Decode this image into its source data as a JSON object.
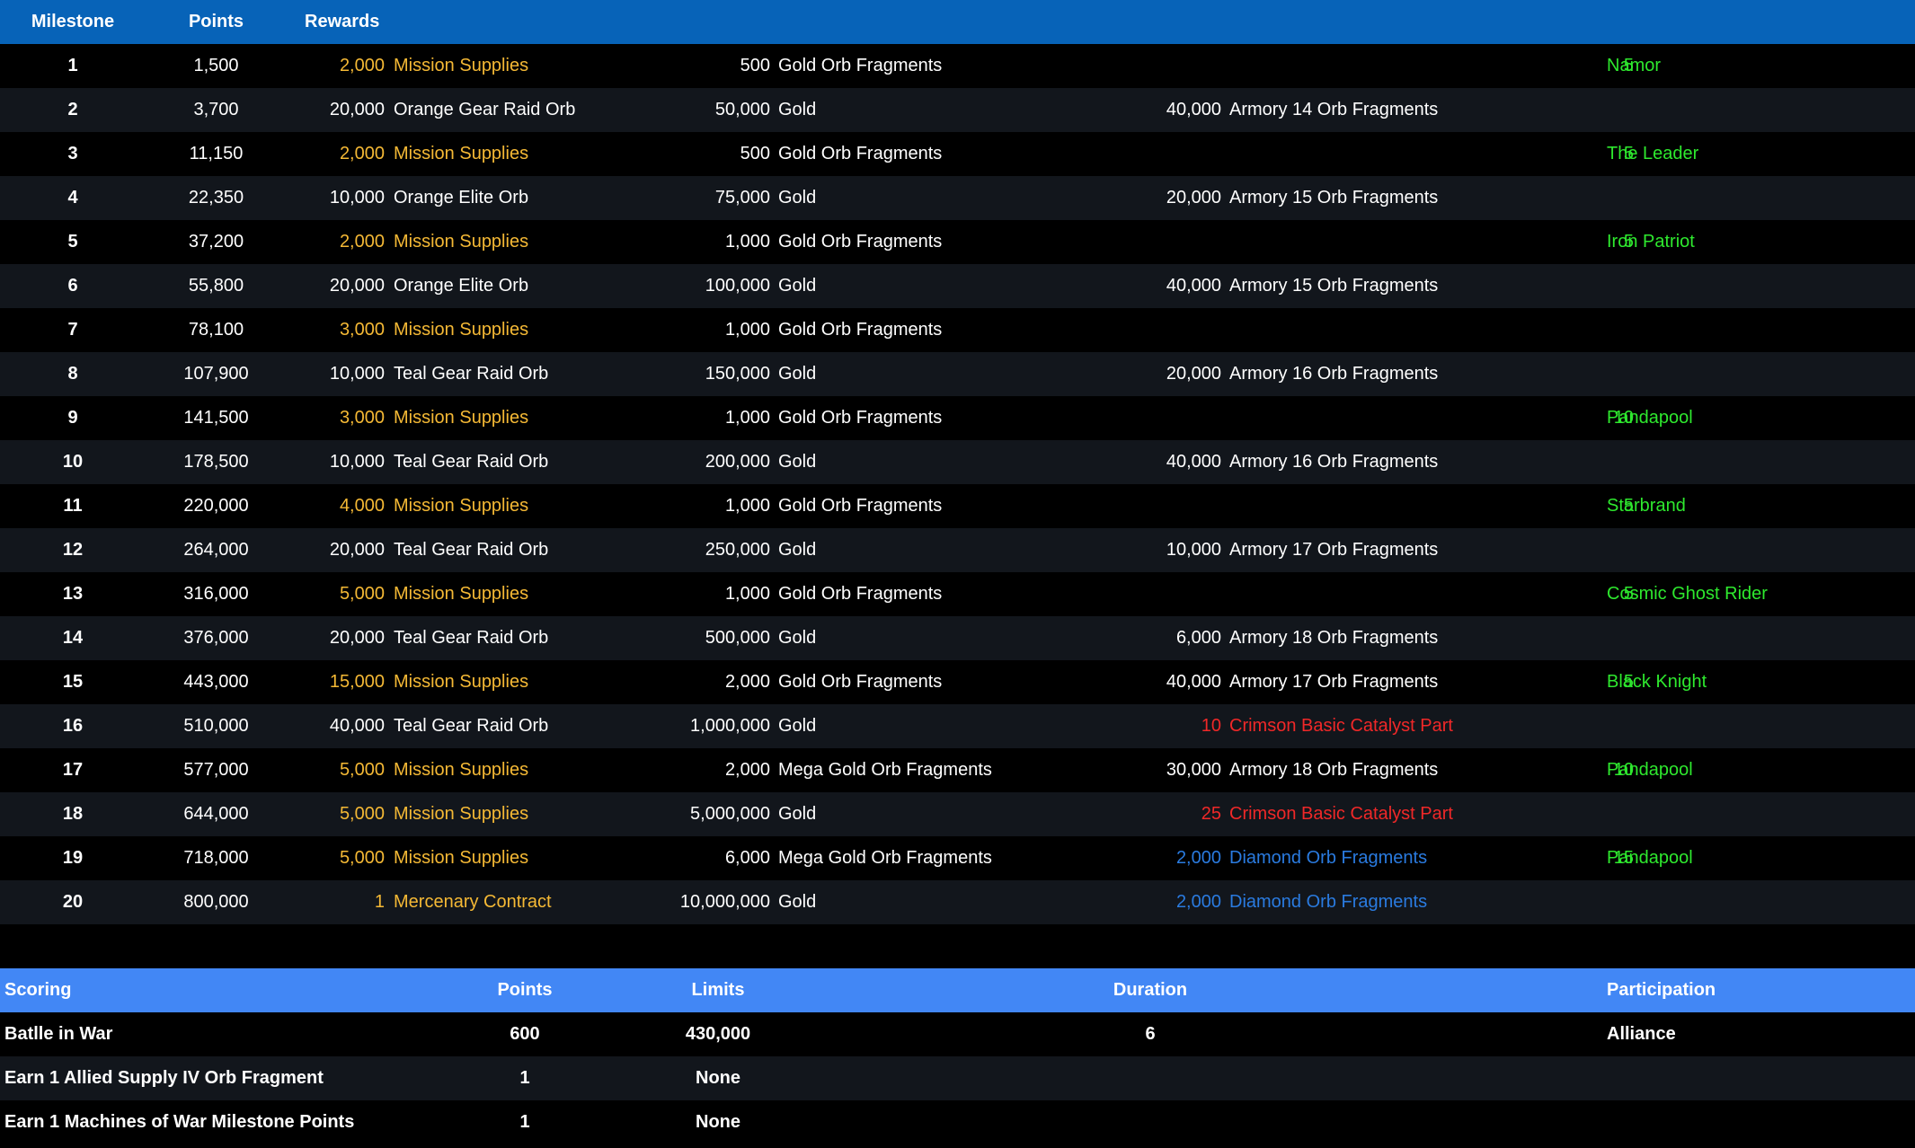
{
  "colors": {
    "header_bg": "#0763b8",
    "scoring_header_bg": "#4287f5",
    "row_dark": "#000000",
    "row_alt": "#12161c",
    "white": "#ffffff",
    "supplies": "#f5b935",
    "character": "#2ee82e",
    "catalyst": "#f02828",
    "diamond": "#2a7be0"
  },
  "milestones": {
    "headers": {
      "milestone": "Milestone",
      "points": "Points",
      "rewards": "Rewards"
    },
    "rows": [
      {
        "milestone": "1",
        "points": "1,500",
        "rewards": [
          {
            "qty": "2,000",
            "name": "Mission Supplies",
            "color": "supplies"
          },
          {
            "qty": "500",
            "name": "Gold Orb Fragments",
            "color": "white"
          },
          null,
          {
            "qty": "5",
            "name": "Namor",
            "color": "character"
          }
        ]
      },
      {
        "milestone": "2",
        "points": "3,700",
        "rewards": [
          {
            "qty": "20,000",
            "name": "Orange Gear Raid Orb",
            "color": "white"
          },
          {
            "qty": "50,000",
            "name": "Gold",
            "color": "white"
          },
          {
            "qty": "40,000",
            "name": "Armory 14 Orb Fragments",
            "color": "white"
          },
          null
        ]
      },
      {
        "milestone": "3",
        "points": "11,150",
        "rewards": [
          {
            "qty": "2,000",
            "name": "Mission Supplies",
            "color": "supplies"
          },
          {
            "qty": "500",
            "name": "Gold Orb Fragments",
            "color": "white"
          },
          null,
          {
            "qty": "5",
            "name": "The Leader",
            "color": "character"
          }
        ]
      },
      {
        "milestone": "4",
        "points": "22,350",
        "rewards": [
          {
            "qty": "10,000",
            "name": "Orange Elite Orb",
            "color": "white"
          },
          {
            "qty": "75,000",
            "name": "Gold",
            "color": "white"
          },
          {
            "qty": "20,000",
            "name": "Armory 15 Orb Fragments",
            "color": "white"
          },
          null
        ]
      },
      {
        "milestone": "5",
        "points": "37,200",
        "rewards": [
          {
            "qty": "2,000",
            "name": "Mission Supplies",
            "color": "supplies"
          },
          {
            "qty": "1,000",
            "name": "Gold Orb Fragments",
            "color": "white"
          },
          null,
          {
            "qty": "5",
            "name": "Iron Patriot",
            "color": "character"
          }
        ]
      },
      {
        "milestone": "6",
        "points": "55,800",
        "rewards": [
          {
            "qty": "20,000",
            "name": "Orange Elite Orb",
            "color": "white"
          },
          {
            "qty": "100,000",
            "name": "Gold",
            "color": "white"
          },
          {
            "qty": "40,000",
            "name": "Armory 15 Orb Fragments",
            "color": "white"
          },
          null
        ]
      },
      {
        "milestone": "7",
        "points": "78,100",
        "rewards": [
          {
            "qty": "3,000",
            "name": "Mission Supplies",
            "color": "supplies"
          },
          {
            "qty": "1,000",
            "name": "Gold Orb Fragments",
            "color": "white"
          },
          null,
          null
        ]
      },
      {
        "milestone": "8",
        "points": "107,900",
        "rewards": [
          {
            "qty": "10,000",
            "name": "Teal Gear Raid Orb",
            "color": "white"
          },
          {
            "qty": "150,000",
            "name": "Gold",
            "color": "white"
          },
          {
            "qty": "20,000",
            "name": "Armory 16 Orb Fragments",
            "color": "white"
          },
          null
        ]
      },
      {
        "milestone": "9",
        "points": "141,500",
        "rewards": [
          {
            "qty": "3,000",
            "name": "Mission Supplies",
            "color": "supplies"
          },
          {
            "qty": "1,000",
            "name": "Gold Orb Fragments",
            "color": "white"
          },
          null,
          {
            "qty": "10",
            "name": "Pandapool",
            "color": "character"
          }
        ]
      },
      {
        "milestone": "10",
        "points": "178,500",
        "rewards": [
          {
            "qty": "10,000",
            "name": "Teal Gear Raid Orb",
            "color": "white"
          },
          {
            "qty": "200,000",
            "name": "Gold",
            "color": "white"
          },
          {
            "qty": "40,000",
            "name": "Armory 16 Orb Fragments",
            "color": "white"
          },
          null
        ]
      },
      {
        "milestone": "11",
        "points": "220,000",
        "rewards": [
          {
            "qty": "4,000",
            "name": "Mission Supplies",
            "color": "supplies"
          },
          {
            "qty": "1,000",
            "name": "Gold Orb Fragments",
            "color": "white"
          },
          null,
          {
            "qty": "5",
            "name": "Starbrand",
            "color": "character"
          }
        ]
      },
      {
        "milestone": "12",
        "points": "264,000",
        "rewards": [
          {
            "qty": "20,000",
            "name": "Teal Gear Raid Orb",
            "color": "white"
          },
          {
            "qty": "250,000",
            "name": "Gold",
            "color": "white"
          },
          {
            "qty": "10,000",
            "name": "Armory 17 Orb Fragments",
            "color": "white"
          },
          null
        ]
      },
      {
        "milestone": "13",
        "points": "316,000",
        "rewards": [
          {
            "qty": "5,000",
            "name": "Mission Supplies",
            "color": "supplies"
          },
          {
            "qty": "1,000",
            "name": "Gold Orb Fragments",
            "color": "white"
          },
          null,
          {
            "qty": "5",
            "name": "Cosmic Ghost Rider",
            "color": "character"
          }
        ]
      },
      {
        "milestone": "14",
        "points": "376,000",
        "rewards": [
          {
            "qty": "20,000",
            "name": "Teal Gear Raid Orb",
            "color": "white"
          },
          {
            "qty": "500,000",
            "name": "Gold",
            "color": "white"
          },
          {
            "qty": "6,000",
            "name": "Armory 18 Orb Fragments",
            "color": "white"
          },
          null
        ]
      },
      {
        "milestone": "15",
        "points": "443,000",
        "rewards": [
          {
            "qty": "15,000",
            "name": "Mission Supplies",
            "color": "supplies"
          },
          {
            "qty": "2,000",
            "name": "Gold Orb Fragments",
            "color": "white"
          },
          {
            "qty": "40,000",
            "name": "Armory 17 Orb Fragments",
            "color": "white"
          },
          {
            "qty": "5",
            "name": "Black Knight",
            "color": "character"
          }
        ]
      },
      {
        "milestone": "16",
        "points": "510,000",
        "rewards": [
          {
            "qty": "40,000",
            "name": "Teal Gear Raid Orb",
            "color": "white"
          },
          {
            "qty": "1,000,000",
            "name": "Gold",
            "color": "white"
          },
          {
            "qty": "10",
            "name": "Crimson Basic Catalyst Part",
            "color": "catalyst"
          },
          null
        ]
      },
      {
        "milestone": "17",
        "points": "577,000",
        "rewards": [
          {
            "qty": "5,000",
            "name": "Mission Supplies",
            "color": "supplies"
          },
          {
            "qty": "2,000",
            "name": "Mega Gold Orb Fragments",
            "color": "white"
          },
          {
            "qty": "30,000",
            "name": "Armory 18 Orb Fragments",
            "color": "white"
          },
          {
            "qty": "10",
            "name": "Pandapool",
            "color": "character"
          }
        ]
      },
      {
        "milestone": "18",
        "points": "644,000",
        "rewards": [
          {
            "qty": "5,000",
            "name": "Mission Supplies",
            "color": "supplies"
          },
          {
            "qty": "5,000,000",
            "name": "Gold",
            "color": "white"
          },
          {
            "qty": "25",
            "name": "Crimson Basic Catalyst Part",
            "color": "catalyst"
          },
          null
        ]
      },
      {
        "milestone": "19",
        "points": "718,000",
        "rewards": [
          {
            "qty": "5,000",
            "name": "Mission Supplies",
            "color": "supplies"
          },
          {
            "qty": "6,000",
            "name": "Mega Gold Orb Fragments",
            "color": "white"
          },
          {
            "qty": "2,000",
            "name": "Diamond Orb Fragments",
            "color": "diamond"
          },
          {
            "qty": "15",
            "name": "Pandapool",
            "color": "character"
          }
        ]
      },
      {
        "milestone": "20",
        "points": "800,000",
        "rewards": [
          {
            "qty": "1",
            "name": "Mercenary Contract",
            "color": "supplies"
          },
          {
            "qty": "10,000,000",
            "name": "Gold",
            "color": "white"
          },
          {
            "qty": "2,000",
            "name": "Diamond Orb Fragments",
            "color": "diamond"
          },
          null
        ]
      }
    ]
  },
  "scoring": {
    "headers": {
      "scoring": "Scoring",
      "points": "Points",
      "limits": "Limits",
      "duration": "Duration",
      "participation": "Participation"
    },
    "rows": [
      {
        "scoring": "Batlle in War",
        "points": "600",
        "limits": "430,000",
        "duration": "6",
        "participation": "Alliance"
      },
      {
        "scoring": "Earn 1 Allied Supply IV Orb Fragment",
        "points": "1",
        "limits": "None",
        "duration": "",
        "participation": ""
      },
      {
        "scoring": "Earn 1 Machines of War Milestone Points",
        "points": "1",
        "limits": "None",
        "duration": "",
        "participation": ""
      }
    ]
  }
}
